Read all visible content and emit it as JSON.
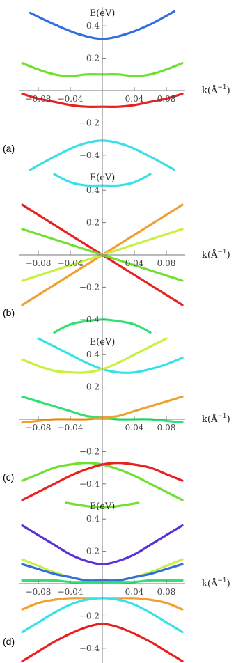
{
  "chart_data": [
    {
      "type": "line",
      "panel_label": "(a)",
      "ylabel": "E(eV)",
      "xlabel": "k(Å",
      "xlabel_sup": "−1",
      "xlabel_close": ")",
      "xlim": [
        -0.1,
        0.1
      ],
      "ylim": [
        -0.5,
        0.5
      ],
      "x_tick_labels": [
        "−0.08",
        "−0.04",
        "0.04",
        "0.08"
      ],
      "y_tick_labels": [
        "0.4",
        "0.2",
        "−0.2",
        "−0.4"
      ],
      "series": [
        {
          "color": "#2f6fe0",
          "x": [
            -0.09,
            -0.06,
            -0.03,
            0,
            0.03,
            0.06,
            0.09
          ],
          "y": [
            0.48,
            0.41,
            0.35,
            0.32,
            0.35,
            0.41,
            0.49
          ]
        },
        {
          "color": "#6fe030",
          "x": [
            -0.1,
            -0.08,
            -0.06,
            -0.04,
            -0.02,
            0,
            0.02,
            0.04,
            0.06,
            0.08,
            0.1
          ],
          "y": [
            0.17,
            0.13,
            0.1,
            0.09,
            0.1,
            0.1,
            0.1,
            0.09,
            0.1,
            0.13,
            0.17
          ]
        },
        {
          "color": "#e82020",
          "x": [
            -0.1,
            -0.08,
            -0.06,
            -0.04,
            -0.02,
            0,
            0.02,
            0.04,
            0.06,
            0.08,
            0.1
          ],
          "y": [
            -0.02,
            -0.05,
            -0.07,
            -0.09,
            -0.1,
            -0.1,
            -0.1,
            -0.09,
            -0.07,
            -0.05,
            -0.02
          ]
        },
        {
          "color": "#38e0e8",
          "x": [
            -0.09,
            -0.06,
            -0.03,
            0,
            0.03,
            0.06,
            0.09
          ],
          "y": [
            -0.49,
            -0.41,
            -0.34,
            -0.31,
            -0.34,
            -0.41,
            -0.49
          ]
        }
      ]
    },
    {
      "type": "line",
      "panel_label": "(b)",
      "ylabel": "E(eV)",
      "xlabel": "k(Å",
      "xlabel_sup": "−1",
      "xlabel_close": ")",
      "xlim": [
        -0.1,
        0.1
      ],
      "ylim": [
        -0.5,
        0.5
      ],
      "x_tick_labels": [
        "−0.08",
        "−0.04",
        "0.04",
        "0.08"
      ],
      "y_tick_labels": [
        "0.4",
        "0.2",
        "−0.2",
        "−0.4"
      ],
      "series": [
        {
          "color": "#38e0e8",
          "x": [
            -0.06,
            -0.04,
            -0.02,
            0,
            0.02,
            0.04,
            0.06
          ],
          "y": [
            0.5,
            0.45,
            0.43,
            0.43,
            0.43,
            0.45,
            0.5
          ]
        },
        {
          "color": "#e82020",
          "x": [
            -0.1,
            0.1
          ],
          "y": [
            0.31,
            -0.31
          ]
        },
        {
          "color": "#f0a030",
          "x": [
            -0.1,
            0.1
          ],
          "y": [
            -0.31,
            0.31
          ]
        },
        {
          "color": "#6fe030",
          "x": [
            -0.1,
            0.1
          ],
          "y": [
            0.16,
            -0.16
          ]
        },
        {
          "color": "#c8f040",
          "x": [
            -0.1,
            0.1
          ],
          "y": [
            -0.16,
            0.16
          ]
        },
        {
          "color": "#30e070",
          "x": [
            -0.06,
            -0.04,
            -0.02,
            0,
            0.02,
            0.04,
            0.06
          ],
          "y": [
            -0.48,
            -0.43,
            -0.41,
            -0.4,
            -0.41,
            -0.43,
            -0.48
          ]
        }
      ]
    },
    {
      "type": "line",
      "panel_label": "(c)",
      "ylabel": "E(eV)",
      "xlabel": "k(Å",
      "xlabel_sup": "−1",
      "xlabel_close": ")",
      "xlim": [
        -0.1,
        0.1
      ],
      "ylim": [
        -0.5,
        0.5
      ],
      "x_tick_labels": [
        "−0.08",
        "−0.04",
        "0.04",
        "0.08"
      ],
      "y_tick_labels": [
        "0.4",
        "0.2",
        "−0.2",
        "−0.4"
      ],
      "series": [
        {
          "color": "#38e0e8",
          "x": [
            -0.08,
            -0.06,
            -0.04,
            -0.02,
            0,
            0.02,
            0.04,
            0.06,
            0.08,
            0.1
          ],
          "y": [
            0.5,
            0.45,
            0.4,
            0.35,
            0.31,
            0.29,
            0.29,
            0.31,
            0.34,
            0.38
          ]
        },
        {
          "color": "#c8f040",
          "x": [
            -0.1,
            -0.08,
            -0.06,
            -0.04,
            -0.02,
            0,
            0.02,
            0.04,
            0.06,
            0.08
          ],
          "y": [
            0.37,
            0.33,
            0.3,
            0.29,
            0.29,
            0.31,
            0.35,
            0.4,
            0.45,
            0.5
          ]
        },
        {
          "color": "#30e070",
          "x": [
            -0.1,
            -0.08,
            -0.06,
            -0.04,
            -0.02,
            0,
            0.02,
            0.04,
            0.06,
            0.08,
            0.1
          ],
          "y": [
            0.14,
            0.11,
            0.08,
            0.05,
            0.02,
            0.01,
            0.0,
            0.0,
            0.0,
            -0.01,
            -0.02
          ]
        },
        {
          "color": "#f0a030",
          "x": [
            -0.1,
            -0.08,
            -0.06,
            -0.04,
            -0.02,
            0,
            0.02,
            0.04,
            0.06,
            0.08,
            0.1
          ],
          "y": [
            -0.02,
            -0.01,
            0.0,
            0.0,
            0.0,
            0.01,
            0.02,
            0.05,
            0.08,
            0.11,
            0.14
          ]
        },
        {
          "color": "#6fe030",
          "x": [
            -0.1,
            -0.08,
            -0.06,
            -0.04,
            -0.02,
            0,
            0.02,
            0.04,
            0.06,
            0.08,
            0.1
          ],
          "y": [
            -0.38,
            -0.34,
            -0.3,
            -0.28,
            -0.27,
            -0.28,
            -0.31,
            -0.35,
            -0.4,
            -0.45,
            -0.5
          ]
        },
        {
          "color": "#e82020",
          "x": [
            -0.1,
            -0.08,
            -0.06,
            -0.04,
            -0.02,
            0,
            0.02,
            0.04,
            0.06,
            0.08,
            0.1
          ],
          "y": [
            -0.5,
            -0.45,
            -0.4,
            -0.35,
            -0.31,
            -0.28,
            -0.27,
            -0.28,
            -0.3,
            -0.34,
            -0.38
          ]
        }
      ]
    },
    {
      "type": "line",
      "panel_label": "(d)",
      "ylabel": "E(eV)",
      "xlabel": "k(Å",
      "xlabel_sup": "−1",
      "xlabel_close": ")",
      "xlim": [
        -0.1,
        0.1
      ],
      "ylim": [
        -0.5,
        0.5
      ],
      "x_tick_labels": [
        "−0.08",
        "−0.04",
        "0.04",
        "0.08"
      ],
      "y_tick_labels": [
        "0.4",
        "0.2",
        "−0.2",
        "−0.4"
      ],
      "series": [
        {
          "color": "#6fe030",
          "x": [
            -0.045,
            -0.02,
            0,
            0.02,
            0.045
          ],
          "y": [
            0.5,
            0.48,
            0.47,
            0.48,
            0.5
          ]
        },
        {
          "color": "#5a30d8",
          "x": [
            -0.1,
            -0.08,
            -0.06,
            -0.04,
            -0.02,
            0,
            0.02,
            0.04,
            0.06,
            0.08,
            0.1
          ],
          "y": [
            0.36,
            0.3,
            0.24,
            0.18,
            0.14,
            0.12,
            0.14,
            0.18,
            0.24,
            0.3,
            0.36
          ]
        },
        {
          "color": "#c8f040",
          "x": [
            -0.1,
            -0.08,
            -0.06,
            -0.04,
            -0.02,
            0,
            0.02,
            0.04,
            0.06,
            0.08,
            0.1
          ],
          "y": [
            0.15,
            0.11,
            0.07,
            0.04,
            0.02,
            0.01,
            0.02,
            0.04,
            0.07,
            0.11,
            0.15
          ]
        },
        {
          "color": "#2f6fe0",
          "x": [
            -0.1,
            -0.08,
            -0.06,
            -0.04,
            -0.02,
            0,
            0.02,
            0.04,
            0.06,
            0.08,
            0.1
          ],
          "y": [
            0.12,
            0.09,
            0.06,
            0.04,
            0.02,
            0.02,
            0.02,
            0.04,
            0.06,
            0.09,
            0.12
          ]
        },
        {
          "color": "#30e070",
          "x": [
            -0.1,
            -0.08,
            -0.06,
            -0.04,
            -0.02,
            0,
            0.02,
            0.04,
            0.06,
            0.08,
            0.1
          ],
          "y": [
            0.02,
            0.02,
            0.02,
            0.01,
            0.01,
            0.01,
            0.01,
            0.01,
            0.02,
            0.02,
            0.02
          ]
        },
        {
          "color": "#f0a030",
          "x": [
            -0.1,
            -0.08,
            -0.06,
            -0.04,
            -0.02,
            0,
            0.02,
            0.04,
            0.06,
            0.08,
            0.1
          ],
          "y": [
            -0.16,
            -0.12,
            -0.1,
            -0.09,
            -0.09,
            -0.09,
            -0.09,
            -0.09,
            -0.1,
            -0.12,
            -0.16
          ]
        },
        {
          "color": "#38e0e8",
          "x": [
            -0.1,
            -0.08,
            -0.06,
            -0.04,
            -0.02,
            0,
            0.02,
            0.04,
            0.06,
            0.08,
            0.1
          ],
          "y": [
            -0.3,
            -0.24,
            -0.18,
            -0.13,
            -0.1,
            -0.09,
            -0.1,
            -0.13,
            -0.18,
            -0.24,
            -0.3
          ]
        },
        {
          "color": "#e82020",
          "x": [
            -0.1,
            -0.08,
            -0.06,
            -0.04,
            -0.02,
            0,
            0.02,
            0.04,
            0.06,
            0.08,
            0.1
          ],
          "y": [
            -0.48,
            -0.42,
            -0.36,
            -0.31,
            -0.27,
            -0.25,
            -0.27,
            -0.31,
            -0.36,
            -0.42,
            -0.48
          ]
        }
      ]
    }
  ]
}
